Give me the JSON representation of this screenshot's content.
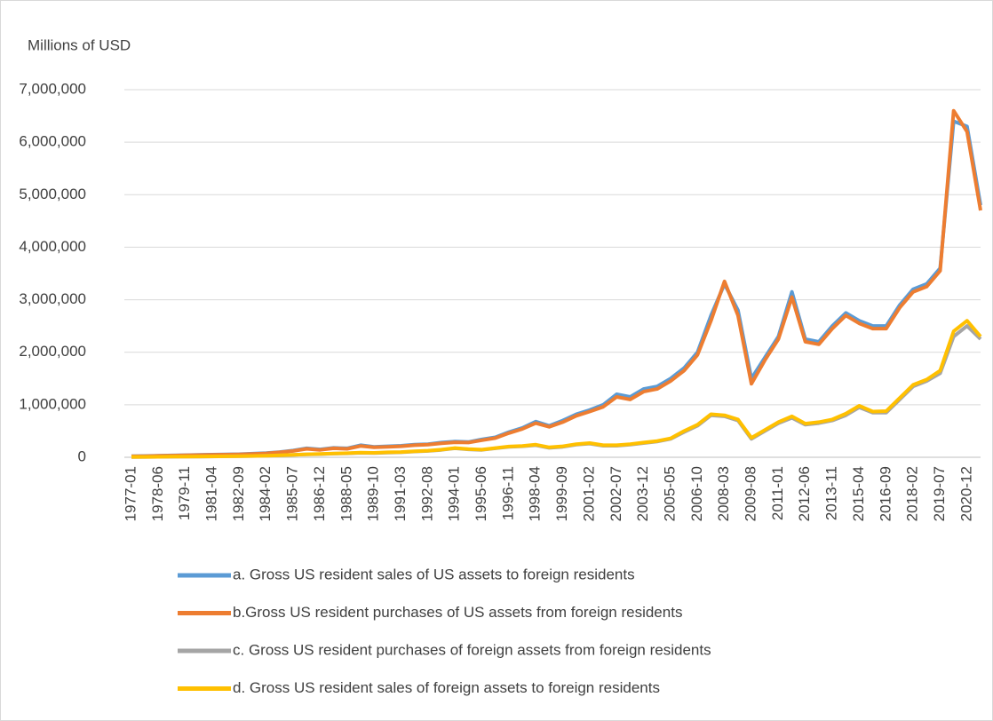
{
  "chart_data": {
    "type": "line",
    "y_axis_title": "Millions of USD",
    "categories": [
      "1977-01",
      null,
      "1978-06",
      null,
      "1979-11",
      null,
      "1981-04",
      null,
      "1982-09",
      null,
      "1984-02",
      null,
      "1985-07",
      null,
      "1986-12",
      null,
      "1988-05",
      null,
      "1989-10",
      null,
      "1991-03",
      null,
      "1992-08",
      null,
      "1994-01",
      null,
      "1995-06",
      null,
      "1996-11",
      null,
      "1998-04",
      null,
      "1999-09",
      null,
      "2001-02",
      null,
      "2002-07",
      null,
      "2003-12",
      null,
      "2005-05",
      null,
      "2006-10",
      null,
      "2008-03",
      null,
      "2009-08",
      null,
      "2011-01",
      null,
      "2012-06",
      null,
      "2013-11",
      null,
      "2015-04",
      null,
      "2016-09",
      null,
      "2018-02",
      null,
      "2019-07",
      null,
      "2020-12",
      null
    ],
    "series": [
      {
        "name": "a. Gross US resident sales of US assets to foreign residents",
        "color": "#5b9bd5",
        "values": [
          20000,
          25000,
          30000,
          35000,
          40000,
          45000,
          50000,
          55000,
          60000,
          70000,
          80000,
          100000,
          130000,
          170000,
          150000,
          180000,
          170000,
          230000,
          200000,
          210000,
          220000,
          240000,
          250000,
          280000,
          300000,
          290000,
          340000,
          380000,
          480000,
          560000,
          680000,
          600000,
          700000,
          820000,
          900000,
          1000000,
          1200000,
          1150000,
          1300000,
          1350000,
          1500000,
          1700000,
          2000000,
          2700000,
          3300000,
          2800000,
          1500000,
          1900000,
          2300000,
          3150000,
          2250000,
          2200000,
          2500000,
          2750000,
          2600000,
          2500000,
          2500000,
          2900000,
          3200000,
          3300000,
          3600000,
          6400000,
          6300000,
          4800000
        ]
      },
      {
        "name": "b.Gross US resident purchases of US assets from foreign residents",
        "color": "#ed7d31",
        "values": [
          18000,
          22000,
          27000,
          32000,
          37000,
          42000,
          46000,
          51000,
          56000,
          65000,
          75000,
          95000,
          120000,
          160000,
          140000,
          170000,
          160000,
          215000,
          190000,
          200000,
          210000,
          230000,
          240000,
          265000,
          285000,
          280000,
          325000,
          365000,
          460000,
          540000,
          650000,
          580000,
          670000,
          790000,
          870000,
          960000,
          1150000,
          1100000,
          1250000,
          1300000,
          1450000,
          1650000,
          1950000,
          2600000,
          3350000,
          2700000,
          1400000,
          1850000,
          2250000,
          3050000,
          2200000,
          2150000,
          2450000,
          2700000,
          2550000,
          2450000,
          2450000,
          2850000,
          3150000,
          3250000,
          3550000,
          6600000,
          6200000,
          4700000
        ]
      },
      {
        "name": "c. Gross US resident purchases of foreign assets from foreign residents",
        "color": "#a5a5a5",
        "values": [
          5000,
          6000,
          8000,
          10000,
          12000,
          14000,
          16000,
          18000,
          20000,
          24000,
          28000,
          35000,
          45000,
          55000,
          60000,
          70000,
          75000,
          85000,
          80000,
          90000,
          95000,
          110000,
          120000,
          140000,
          170000,
          150000,
          140000,
          170000,
          200000,
          210000,
          230000,
          180000,
          200000,
          240000,
          260000,
          220000,
          220000,
          240000,
          270000,
          300000,
          350000,
          480000,
          600000,
          800000,
          780000,
          700000,
          350000,
          500000,
          650000,
          750000,
          620000,
          650000,
          700000,
          800000,
          950000,
          850000,
          850000,
          1100000,
          1350000,
          1450000,
          1600000,
          2300000,
          2500000,
          2250000
        ]
      },
      {
        "name": "d. Gross US resident sales of foreign assets to foreign residents",
        "color": "#ffc000",
        "values": [
          6000,
          7000,
          9000,
          11000,
          13000,
          15000,
          17000,
          19000,
          22000,
          26000,
          30000,
          38000,
          48000,
          58000,
          63000,
          73000,
          78000,
          88000,
          84000,
          94000,
          100000,
          115000,
          125000,
          145000,
          175000,
          155000,
          145000,
          175000,
          205000,
          215000,
          240000,
          190000,
          210000,
          250000,
          270000,
          230000,
          230000,
          250000,
          280000,
          310000,
          360000,
          500000,
          620000,
          820000,
          800000,
          720000,
          370000,
          520000,
          670000,
          780000,
          640000,
          670000,
          720000,
          830000,
          980000,
          870000,
          880000,
          1130000,
          1380000,
          1480000,
          1650000,
          2400000,
          2600000,
          2300000
        ]
      }
    ],
    "ylim": [
      0,
      7000000
    ],
    "yticks": [
      0,
      {
        "value": 1000000,
        "label": "1,000,000"
      },
      {
        "value": 2000000,
        "label": "2,000,000"
      },
      {
        "value": 3000000,
        "label": "3,000,000"
      },
      {
        "value": 4000000,
        "label": "4,000,000"
      },
      {
        "value": 5000000,
        "label": "5,000,000"
      },
      {
        "value": 6000000,
        "label": "6,000,000"
      },
      {
        "value": 7000000,
        "label": "7,000,000"
      }
    ],
    "grid": true
  }
}
